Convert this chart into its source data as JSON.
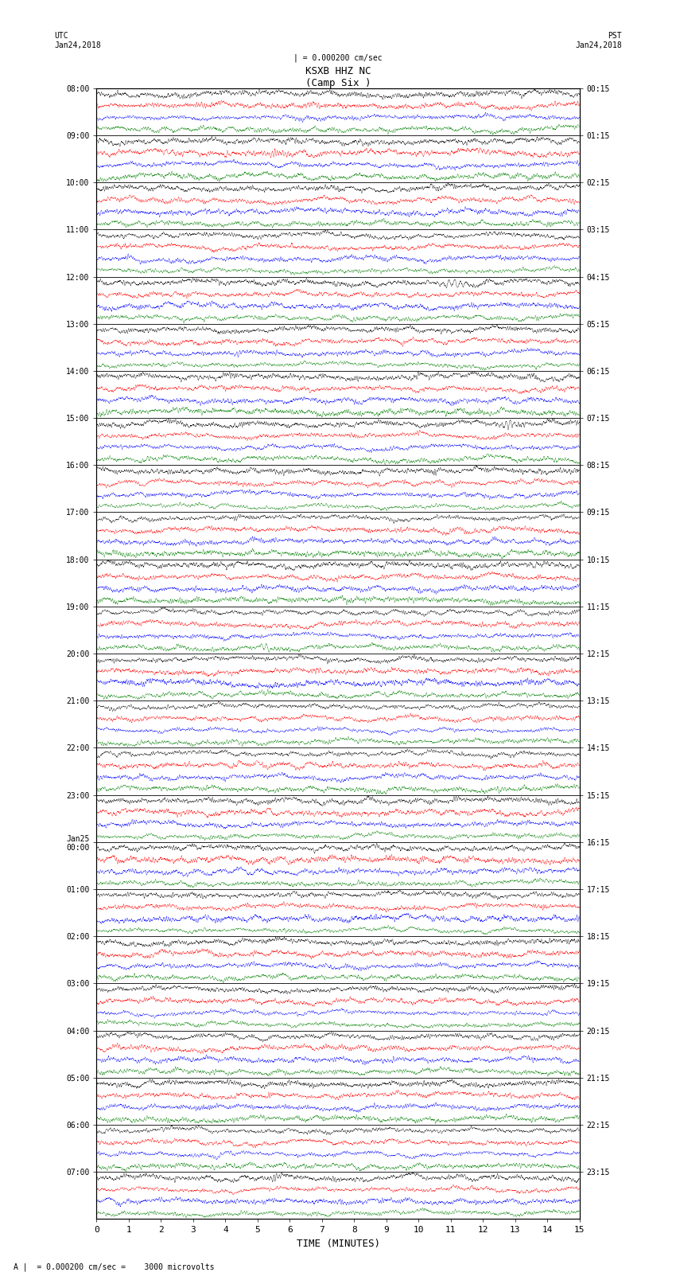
{
  "title_center": "KSXB HHZ NC",
  "title_sub": "(Camp Six )",
  "scale_label": "| = 0.000200 cm/sec",
  "bottom_label": "A |  = 0.000200 cm/sec =    3000 microvolts",
  "xlabel": "TIME (MINUTES)",
  "left_date": "UTC\nJan24,2018",
  "right_date": "PST\nJan24,2018",
  "left_times": [
    "08:00",
    "09:00",
    "10:00",
    "11:00",
    "12:00",
    "13:00",
    "14:00",
    "15:00",
    "16:00",
    "17:00",
    "18:00",
    "19:00",
    "20:00",
    "21:00",
    "22:00",
    "23:00",
    "Jan25\n00:00",
    "01:00",
    "02:00",
    "03:00",
    "04:00",
    "05:00",
    "06:00",
    "07:00"
  ],
  "right_times": [
    "00:15",
    "01:15",
    "02:15",
    "03:15",
    "04:15",
    "05:15",
    "06:15",
    "07:15",
    "08:15",
    "09:15",
    "10:15",
    "11:15",
    "12:15",
    "13:15",
    "14:15",
    "15:15",
    "16:15",
    "17:15",
    "18:15",
    "19:15",
    "20:15",
    "21:15",
    "22:15",
    "23:15"
  ],
  "trace_color_cycle": [
    "black",
    "red",
    "blue",
    "green"
  ],
  "n_rows": 24,
  "n_traces_per_row": 4,
  "total_minutes": 15,
  "bg_color": "white",
  "noise_seed": 42
}
